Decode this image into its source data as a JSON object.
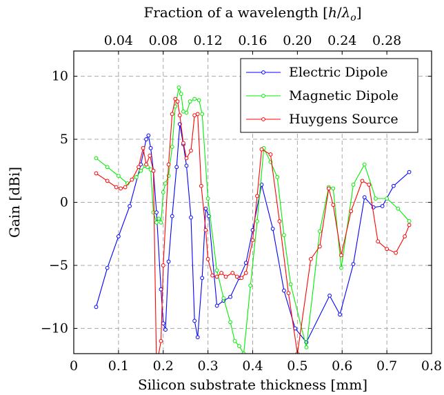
{
  "chart_data": {
    "type": "line",
    "title": "",
    "xlabel": "Silicon substrate thickness [mm]",
    "ylabel": "Gain [dBi]",
    "top_axis_label": "Fraction of a wavelength [h/λo]",
    "top_axis_label_parts": {
      "text": "Fraction of a wavelength [",
      "var_h": "h",
      "slash": "/",
      "var_lambda": "λ",
      "sub_o": "o",
      "close": "]"
    },
    "xlim": [
      0,
      0.8
    ],
    "ylim": [
      -12,
      12
    ],
    "x_ticks": [
      0,
      0.1,
      0.2,
      0.3,
      0.4,
      0.5,
      0.6,
      0.7,
      0.8
    ],
    "x_tick_labels": [
      "0",
      "0.1",
      "0.2",
      "0.3",
      "0.4",
      "0.5",
      "0.6",
      "0.7",
      "0.8"
    ],
    "y_ticks": [
      -10,
      -5,
      0,
      5,
      10
    ],
    "y_tick_labels": [
      "−10",
      "−5",
      "0",
      "5",
      "10"
    ],
    "top_ticks": [
      0.04,
      0.08,
      0.12,
      0.16,
      0.2,
      0.24,
      0.28
    ],
    "top_tick_labels": [
      "0.04",
      "0.08",
      "0.12",
      "0.16",
      "0.20",
      "0.24",
      "0.28"
    ],
    "top_tick_mm_per_unit": 2.5,
    "grid": true,
    "legend_position": "top-right",
    "series": [
      {
        "name": "Electric Dipole",
        "color": "#0000ff",
        "x": [
          0.05,
          0.075,
          0.1,
          0.125,
          0.15,
          0.162,
          0.167,
          0.172,
          0.178,
          0.185,
          0.195,
          0.2,
          0.205,
          0.212,
          0.22,
          0.23,
          0.237,
          0.245,
          0.252,
          0.262,
          0.27,
          0.277,
          0.287,
          0.295,
          0.302,
          0.32,
          0.335,
          0.35,
          0.37,
          0.385,
          0.4,
          0.42,
          0.445,
          0.47,
          0.495,
          0.52,
          0.572,
          0.595,
          0.625,
          0.65,
          0.67,
          0.69,
          0.715,
          0.75
        ],
        "y": [
          -8.3,
          -5.2,
          -2.7,
          -0.3,
          3.0,
          5.0,
          5.3,
          4.3,
          2.5,
          -0.8,
          -6.9,
          -9.6,
          -10.1,
          -4.7,
          -1.1,
          2.8,
          6.2,
          4.6,
          2.9,
          -1.2,
          -9.4,
          -10.7,
          -6.0,
          -0.5,
          -1.1,
          -8.2,
          -7.8,
          -7.5,
          -6.0,
          -4.8,
          -2.2,
          1.4,
          -2.1,
          -7.0,
          -10.0,
          -11.1,
          -7.4,
          -8.9,
          -4.9,
          0.4,
          -0.4,
          -0.3,
          1.3,
          2.4
        ]
      },
      {
        "name": "Magnetic Dipole",
        "color": "#00ee00",
        "x": [
          0.05,
          0.075,
          0.1,
          0.12,
          0.14,
          0.15,
          0.16,
          0.165,
          0.172,
          0.178,
          0.185,
          0.19,
          0.195,
          0.2,
          0.205,
          0.212,
          0.22,
          0.227,
          0.235,
          0.24,
          0.245,
          0.252,
          0.26,
          0.27,
          0.28,
          0.287,
          0.3,
          0.32,
          0.335,
          0.35,
          0.36,
          0.37,
          0.38,
          0.395,
          0.41,
          0.425,
          0.44,
          0.455,
          0.47,
          0.485,
          0.52,
          0.55,
          0.57,
          0.58,
          0.598,
          0.625,
          0.65,
          0.675,
          0.7,
          0.725,
          0.75
        ],
        "y": [
          3.5,
          2.8,
          2.1,
          1.5,
          2.0,
          2.5,
          2.9,
          2.8,
          2.6,
          -0.8,
          -1.6,
          -1.3,
          -1.6,
          0.8,
          1.5,
          2.1,
          4.4,
          7.6,
          9.1,
          8.6,
          7.2,
          7.1,
          8.0,
          8.2,
          8.1,
          7.0,
          0.3,
          -5.4,
          -7.6,
          -9.5,
          -11.0,
          -11.4,
          -12.0,
          -6.6,
          -1.5,
          4.3,
          3.2,
          2.0,
          -2.6,
          -6.5,
          -11.5,
          -2.3,
          1.2,
          1.1,
          -5.2,
          1.4,
          3.0,
          0.3,
          0.3,
          -0.5,
          -1.5
        ]
      },
      {
        "name": "Huygens Source",
        "color": "#ff0000",
        "x": [
          0.05,
          0.075,
          0.095,
          0.105,
          0.115,
          0.13,
          0.145,
          0.155,
          0.162,
          0.17,
          0.178,
          0.185,
          0.195,
          0.2,
          0.212,
          0.22,
          0.227,
          0.232,
          0.237,
          0.245,
          0.252,
          0.262,
          0.27,
          0.277,
          0.285,
          0.295,
          0.3,
          0.31,
          0.32,
          0.33,
          0.34,
          0.355,
          0.365,
          0.375,
          0.385,
          0.4,
          0.41,
          0.42,
          0.44,
          0.46,
          0.48,
          0.5,
          0.53,
          0.55,
          0.57,
          0.58,
          0.598,
          0.62,
          0.645,
          0.66,
          0.68,
          0.7,
          0.72,
          0.74,
          0.75
        ],
        "y": [
          2.3,
          1.7,
          1.2,
          1.1,
          1.2,
          1.8,
          2.8,
          4.3,
          3.0,
          3.7,
          2.5,
          -13.0,
          -11.0,
          -5.0,
          3.0,
          7.0,
          8.2,
          8.0,
          6.9,
          4.7,
          3.5,
          4.1,
          6.9,
          7.0,
          1.3,
          -2.2,
          -4.5,
          -5.8,
          -5.9,
          -5.6,
          -5.9,
          -5.6,
          -5.9,
          -6.0,
          -5.6,
          -3.0,
          0.5,
          4.2,
          3.8,
          -1.5,
          -7.2,
          -12.0,
          -4.5,
          -3.5,
          1.1,
          -0.2,
          -4.2,
          -0.7,
          1.7,
          1.4,
          -3.1,
          -3.7,
          -4.0,
          -2.7,
          -1.8
        ]
      }
    ]
  }
}
